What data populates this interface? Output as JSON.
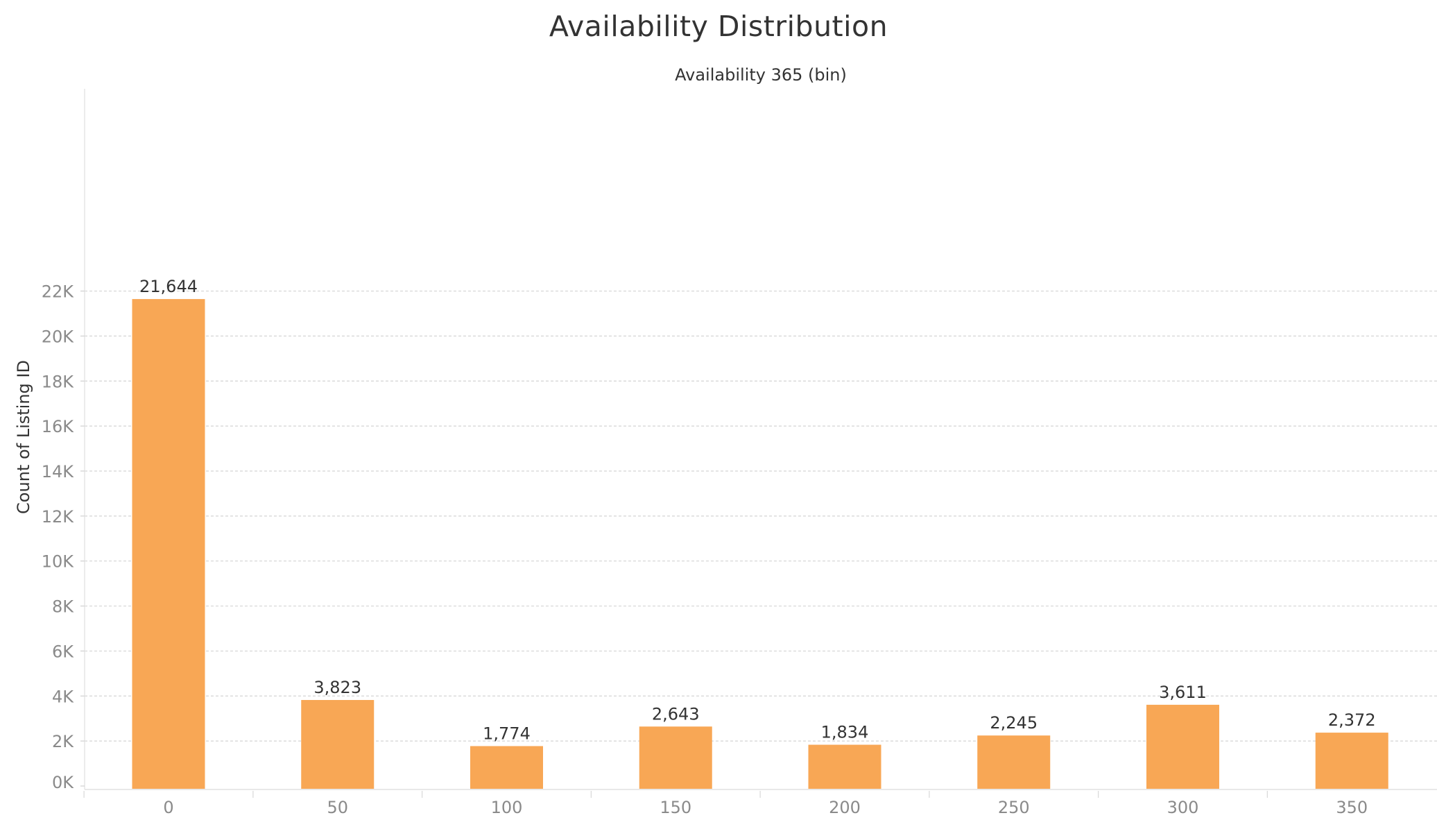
{
  "chart_data": {
    "type": "bar",
    "title": "Availability Distribution",
    "xlabel": "Availability 365 (bin)",
    "ylabel": "Count of Listing ID",
    "categories": [
      "0",
      "50",
      "100",
      "150",
      "200",
      "250",
      "300",
      "350"
    ],
    "values": [
      21644,
      3823,
      1774,
      2643,
      1834,
      2245,
      3611,
      2372
    ],
    "data_labels": [
      "21,644",
      "3,823",
      "1,774",
      "2,643",
      "1,834",
      "2,245",
      "3,611",
      "2,372"
    ],
    "y_ticks": [
      0,
      2000,
      4000,
      6000,
      8000,
      10000,
      12000,
      14000,
      16000,
      18000,
      20000,
      22000
    ],
    "y_tick_labels": [
      "0K",
      "2K",
      "4K",
      "6K",
      "8K",
      "10K",
      "12K",
      "14K",
      "16K",
      "18K",
      "20K",
      "22K"
    ],
    "ylim": [
      0,
      23500
    ],
    "grid": true,
    "legend": "none",
    "bar_color": "#F8A755"
  }
}
